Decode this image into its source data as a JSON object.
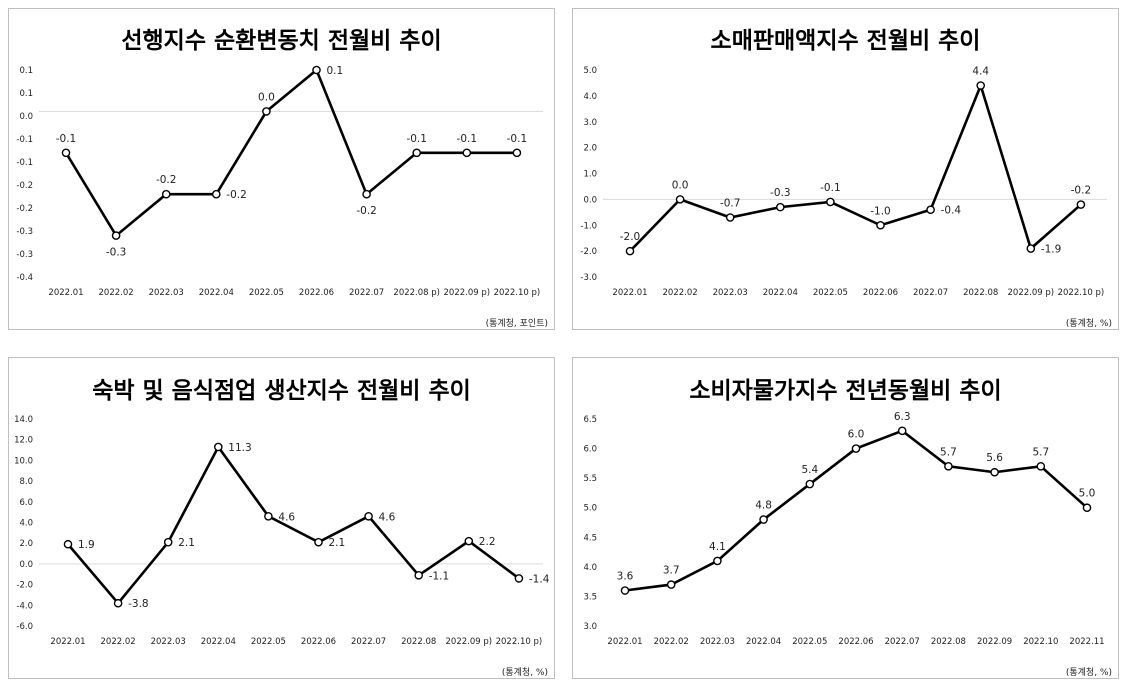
{
  "chart_data": [
    {
      "type": "line",
      "title": "선행지수 순환변동치 전월비 추이",
      "source": "(통계청, 포인트)",
      "categories": [
        "2022.01",
        "2022.02",
        "2022.03",
        "2022.04",
        "2022.05",
        "2022.06",
        "2022.07",
        "2022.08 p)",
        "2022.09 p)",
        "2022.10 p)"
      ],
      "values": [
        -0.1,
        -0.3,
        -0.2,
        -0.2,
        0.0,
        0.1,
        -0.2,
        -0.1,
        -0.1,
        -0.1
      ],
      "value_labels": [
        "-0.1",
        "-0.3",
        "-0.2",
        "-0.2",
        "0.0",
        "0.1",
        "-0.2",
        "-0.1",
        "-0.1",
        "-0.1"
      ],
      "y_ticks": [
        "0.1",
        "0.1",
        "0.0",
        "-0.1",
        "-0.1",
        "-0.2",
        "-0.2",
        "-0.3",
        "-0.3",
        "-0.4"
      ],
      "ylim": [
        -0.4,
        0.1
      ],
      "grid": false,
      "line_color": "#000000"
    },
    {
      "type": "line",
      "title": "소매판매액지수 전월비 추이",
      "source": "(통계청, %)",
      "categories": [
        "2022.01",
        "2022.02",
        "2022.03",
        "2022.04",
        "2022.05",
        "2022.06",
        "2022.07",
        "2022.08",
        "2022.09 p)",
        "2022.10 p)"
      ],
      "values": [
        -2.0,
        0.0,
        -0.7,
        -0.3,
        -0.1,
        -1.0,
        -0.4,
        4.4,
        -1.9,
        -0.2
      ],
      "value_labels": [
        "-2.0",
        "0.0",
        "-0.7",
        "-0.3",
        "-0.1",
        "-1.0",
        "-0.4",
        "4.4",
        "-1.9",
        "-0.2"
      ],
      "y_ticks": [
        "5.0",
        "4.0",
        "3.0",
        "2.0",
        "1.0",
        "0.0",
        "-1.0",
        "-2.0",
        "-3.0"
      ],
      "ylim": [
        -3.0,
        5.0
      ],
      "grid": false,
      "line_color": "#000000"
    },
    {
      "type": "line",
      "title": "숙박 및 음식점업 생산지수 전월비 추이",
      "source": "(통계청, %)",
      "categories": [
        "2022.01",
        "2022.02",
        "2022.03",
        "2022.04",
        "2022.05",
        "2022.06",
        "2022.07",
        "2022.08",
        "2022.09 p)",
        "2022.10 p)"
      ],
      "values": [
        1.9,
        -3.8,
        2.1,
        11.3,
        4.6,
        2.1,
        4.6,
        -1.1,
        2.2,
        -1.4
      ],
      "value_labels": [
        "1.9",
        "-3.8",
        "2.1",
        "11.3",
        "4.6",
        "2.1",
        "4.6",
        "-1.1",
        "2.2",
        "-1.4"
      ],
      "y_ticks": [
        "14.0",
        "12.0",
        "10.0",
        "8.0",
        "6.0",
        "4.0",
        "2.0",
        "0.0",
        "-2.0",
        "-4.0",
        "-6.0"
      ],
      "ylim": [
        -6.0,
        14.0
      ],
      "grid": false,
      "line_color": "#000000"
    },
    {
      "type": "line",
      "title": "소비자물가지수 전년동월비 추이",
      "source": "(통계청, %)",
      "categories": [
        "2022.01",
        "2022.02",
        "2022.03",
        "2022.04",
        "2022.05",
        "2022.06",
        "2022.07",
        "2022.08",
        "2022.09",
        "2022.10",
        "2022.11"
      ],
      "values": [
        3.6,
        3.7,
        4.1,
        4.8,
        5.4,
        6.0,
        6.3,
        5.7,
        5.6,
        5.7,
        5.0
      ],
      "value_labels": [
        "3.6",
        "3.7",
        "4.1",
        "4.8",
        "5.4",
        "6.0",
        "6.3",
        "5.7",
        "5.6",
        "5.7",
        "5.0"
      ],
      "y_ticks": [
        "6.5",
        "6.0",
        "5.5",
        "5.0",
        "4.5",
        "4.0",
        "3.5",
        "3.0"
      ],
      "ylim": [
        3.0,
        6.5
      ],
      "grid": false,
      "line_color": "#000000"
    }
  ]
}
